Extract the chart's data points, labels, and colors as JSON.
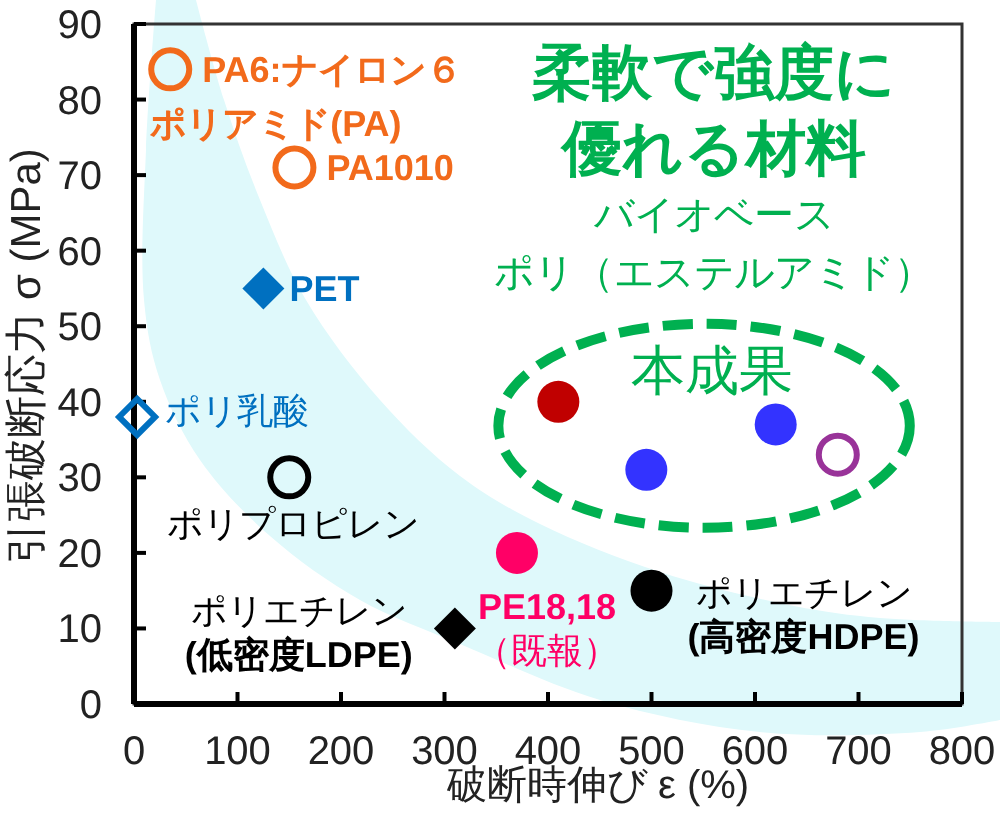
{
  "chart_data": {
    "type": "scatter",
    "xlabel": "破断時伸び ε (%)",
    "ylabel": "引張破断応力 σ (MPa)",
    "xlim": [
      0,
      800
    ],
    "ylim": [
      0,
      90
    ],
    "xticks": [
      0,
      100,
      200,
      300,
      400,
      500,
      600,
      700,
      800
    ],
    "yticks": [
      0,
      10,
      20,
      30,
      40,
      50,
      60,
      70,
      80,
      90
    ],
    "annotations": [
      "柔軟で強度に優れる材料",
      "バイオベースポリ（エステルアミド）"
    ],
    "series": [
      {
        "name": "ポリアミド(PA)",
        "color": "#f26a1b",
        "marker": "circle",
        "x": [
          35,
          155
        ],
        "values": [
          84,
          71
        ],
        "value_labels": [
          "PA6:ナイロン６",
          "PA1010"
        ]
      },
      {
        "name": "PET",
        "color": "#0070c0",
        "marker": "diamond",
        "x": [
          125
        ],
        "values": [
          55
        ]
      },
      {
        "name": "ポリ乳酸",
        "color": "#0070c0",
        "marker": "diamond",
        "x": [
          3
        ],
        "values": [
          38
        ]
      },
      {
        "name": "ポリプロピレン",
        "color": "#000000",
        "marker": "circle",
        "x": [
          150
        ],
        "values": [
          30
        ]
      },
      {
        "name": "ポリエチレン (低密度LDPE)",
        "color": "#000000",
        "marker": "diamond",
        "x": [
          310
        ],
        "values": [
          10
        ]
      },
      {
        "name": "PE18,18 （既報）",
        "color": "#ff0066",
        "marker": "circle",
        "x": [
          370
        ],
        "values": [
          20
        ]
      },
      {
        "name": "ポリエチレン (高密度HDPE)",
        "color": "#000000",
        "marker": "circle",
        "x": [
          500
        ],
        "values": [
          15
        ]
      },
      {
        "name": "本成果",
        "colors": [
          "#c00000",
          "#3333ff",
          "#3333ff",
          "#993399"
        ],
        "marker": "circle",
        "x": [
          410,
          495,
          620,
          680
        ],
        "values": [
          40,
          31,
          37,
          33
        ]
      }
    ]
  }
}
